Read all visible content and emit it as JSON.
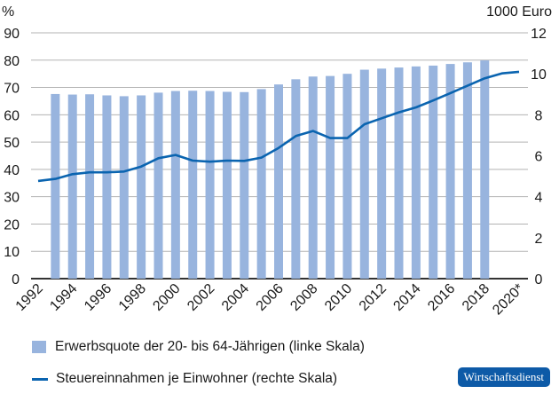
{
  "chart_data": {
    "type": "bar+line",
    "left_axis": {
      "unit_label": "%",
      "ylim": [
        0,
        90
      ],
      "ticks": [
        0,
        10,
        20,
        30,
        40,
        50,
        60,
        70,
        80,
        90
      ]
    },
    "right_axis": {
      "unit_label": "1000 Euro",
      "ylim": [
        0,
        12
      ],
      "ticks": [
        0,
        2,
        4,
        6,
        8,
        10,
        12
      ]
    },
    "x_ticks": [
      "1992",
      "1994",
      "1996",
      "1998",
      "2000",
      "2002",
      "2004",
      "2006",
      "2008",
      "2010",
      "2012",
      "2014",
      "2016",
      "2018",
      "2020*"
    ],
    "x": [
      1992,
      1993,
      1994,
      1995,
      1996,
      1997,
      1998,
      1999,
      2000,
      2001,
      2002,
      2003,
      2004,
      2005,
      2006,
      2007,
      2008,
      2009,
      2010,
      2011,
      2012,
      2013,
      2014,
      2015,
      2016,
      2017,
      2018,
      2019,
      2020
    ],
    "grid": true,
    "legend_placement": "bottom",
    "series": [
      {
        "name": "Erwerbsquote der 20- bis 64-Jährigen (linke Skala)",
        "type": "bar",
        "axis": "left",
        "color": "#98b4de",
        "values": [
          null,
          67.6,
          67.4,
          67.5,
          67.1,
          66.8,
          67.1,
          68.1,
          68.7,
          68.8,
          68.7,
          68.4,
          68.3,
          69.4,
          71.1,
          73.0,
          74.0,
          74.2,
          75.0,
          76.5,
          76.9,
          77.3,
          77.7,
          78.0,
          78.6,
          79.2,
          79.9,
          null,
          null
        ]
      },
      {
        "name": "Steuereinnahmen je Einwohner (rechte Skala)",
        "type": "line",
        "axis": "right",
        "color": "#0a64b0",
        "values": [
          4.77,
          4.87,
          5.1,
          5.19,
          5.19,
          5.23,
          5.47,
          5.88,
          6.04,
          5.76,
          5.71,
          5.76,
          5.75,
          5.91,
          6.38,
          6.96,
          7.21,
          6.86,
          6.86,
          7.54,
          7.83,
          8.12,
          8.36,
          8.7,
          9.06,
          9.42,
          9.78,
          10.02,
          10.1
        ]
      }
    ]
  },
  "logo": "Wirtschaftsdienst"
}
